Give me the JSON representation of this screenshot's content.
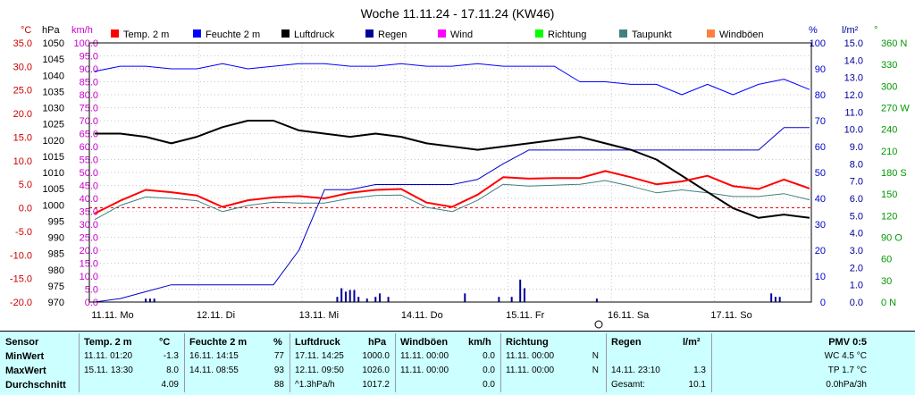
{
  "title": "Woche 11.11.24 - 17.11.24 (KW46)",
  "legend": [
    {
      "label": "Temp. 2 m",
      "color": "#ff0000"
    },
    {
      "label": "Feuchte  2 m",
      "color": "#0000ff"
    },
    {
      "label": "Luftdruck",
      "color": "#000000"
    },
    {
      "label": "Regen",
      "color": "#000099"
    },
    {
      "label": "Wind",
      "color": "#ff00ff"
    },
    {
      "label": "Richtung",
      "color": "#00ff00"
    },
    {
      "label": "Taupunkt",
      "color": "#408080"
    },
    {
      "label": "Windböen",
      "color": "#ff8040"
    }
  ],
  "axes": {
    "temp": {
      "unit": "°C",
      "color": "#cc0000",
      "ticks": [
        "35.0",
        "30.0",
        "25.0",
        "20.0",
        "15.0",
        "10.0",
        "5.0",
        "0.0",
        "-5.0",
        "-10.0",
        "-15.0",
        "-20.0"
      ]
    },
    "pressure": {
      "unit": "hPa",
      "color": "#000000",
      "ticks": [
        "1050",
        "1045",
        "1040",
        "1035",
        "1030",
        "1025",
        "1020",
        "1015",
        "1010",
        "1005",
        "1000",
        "995",
        "990",
        "985",
        "980",
        "975",
        "970"
      ]
    },
    "wind": {
      "unit": "km/h",
      "color": "#cc00cc",
      "ticks": [
        "100.0",
        "95.0",
        "90.0",
        "85.0",
        "80.0",
        "75.0",
        "70.0",
        "65.0",
        "60.0",
        "55.0",
        "50.0",
        "45.0",
        "40.0",
        "35.0",
        "30.0",
        "25.0",
        "20.0",
        "15.0",
        "10.0",
        "5.0",
        "0.0"
      ]
    },
    "humidity": {
      "unit": "%",
      "color": "#0000cc",
      "ticks": [
        "100",
        "90",
        "80",
        "70",
        "60",
        "50",
        "40",
        "30",
        "20",
        "10",
        "0"
      ]
    },
    "rain": {
      "unit": "l/m²",
      "color": "#000099",
      "ticks": [
        "15.0",
        "14.0",
        "13.0",
        "12.0",
        "11.0",
        "10.0",
        "9.0",
        "8.0",
        "7.0",
        "6.0",
        "5.0",
        "4.0",
        "3.0",
        "2.0",
        "1.0",
        "0.0"
      ]
    },
    "direction": {
      "unit": "°",
      "color": "#009900",
      "ticks": [
        "360 N",
        "330",
        "300",
        "270 W",
        "240",
        "210",
        "180 S",
        "150",
        "120",
        "90 O",
        "60",
        "30",
        "0 N"
      ]
    }
  },
  "x_labels": [
    "11.11. Mo",
    "12.11. Di",
    "13.11. Mi",
    "14.11. Do",
    "15.11. Fr",
    "16.11. Sa",
    "17.11. So"
  ],
  "chart_data": {
    "type": "line",
    "title": "Woche 11.11.24 - 17.11.24 (KW46)",
    "x": [
      0,
      6,
      12,
      18,
      24,
      30,
      36,
      42,
      48,
      54,
      60,
      66,
      72,
      78,
      84,
      90,
      96,
      102,
      108,
      114,
      120,
      126,
      132,
      138,
      144,
      150,
      156,
      162,
      168
    ],
    "xlabel_ticks": [
      "11.11. Mo",
      "12.11. Di",
      "13.11. Mi",
      "14.11. Do",
      "15.11. Fr",
      "16.11. Sa",
      "17.11. So"
    ],
    "series": [
      {
        "name": "Temp. 2 m",
        "axis": "temp",
        "values": [
          -1.2,
          1.5,
          3.8,
          3.3,
          2.6,
          0.2,
          1.6,
          2.2,
          2.5,
          2.0,
          3.2,
          3.8,
          4.0,
          1.1,
          0.2,
          2.8,
          6.5,
          6.2,
          6.3,
          6.3,
          7.8,
          6.5,
          5.0,
          5.6,
          6.8,
          4.6,
          4.0,
          6.0,
          4.1
        ]
      },
      {
        "name": "Feuchte  2 m",
        "axis": "humidity",
        "values": [
          89,
          91,
          91,
          90,
          90,
          92,
          90,
          91,
          92,
          92,
          91,
          91,
          92,
          91,
          91,
          92,
          91,
          91,
          91,
          85,
          85,
          84,
          84,
          80,
          84,
          80,
          84,
          86,
          82
        ]
      },
      {
        "name": "Luftdruck",
        "axis": "pressure",
        "values": [
          1022,
          1022,
          1021,
          1019,
          1021,
          1024,
          1026,
          1026,
          1023,
          1022,
          1021,
          1022,
          1021,
          1019,
          1018,
          1017,
          1018,
          1019,
          1020,
          1021,
          1019,
          1017,
          1014,
          1009,
          1004,
          999,
          996,
          997,
          996
        ]
      },
      {
        "name": "Regen",
        "axis": "rain",
        "values": [
          0.0,
          0.2,
          0.6,
          1.0,
          1.0,
          1.0,
          1.0,
          1.0,
          3.0,
          6.5,
          6.5,
          6.8,
          6.8,
          6.8,
          6.8,
          7.1,
          8.0,
          8.8,
          8.8,
          8.8,
          8.8,
          8.8,
          8.8,
          8.8,
          8.8,
          8.8,
          8.8,
          10.1,
          10.1
        ]
      },
      {
        "name": "Taupunkt",
        "axis": "temp",
        "values": [
          -2.5,
          0.5,
          2.3,
          2.0,
          1.5,
          -0.8,
          0.5,
          1.2,
          1.0,
          1.0,
          2.0,
          2.6,
          2.7,
          0.1,
          -0.8,
          1.6,
          5.0,
          4.6,
          4.8,
          5.0,
          5.8,
          4.6,
          3.2,
          3.8,
          3.2,
          2.4,
          2.4,
          3.0,
          1.7
        ]
      }
    ],
    "rain_bars_mm": [
      {
        "x": 12,
        "v": 0.2
      },
      {
        "x": 13,
        "v": 0.2
      },
      {
        "x": 14,
        "v": 0.2
      },
      {
        "x": 57,
        "v": 0.3
      },
      {
        "x": 58,
        "v": 0.8
      },
      {
        "x": 59,
        "v": 0.6
      },
      {
        "x": 60,
        "v": 0.7
      },
      {
        "x": 61,
        "v": 0.7
      },
      {
        "x": 62,
        "v": 0.3
      },
      {
        "x": 64,
        "v": 0.2
      },
      {
        "x": 66,
        "v": 0.3
      },
      {
        "x": 67,
        "v": 0.5
      },
      {
        "x": 69,
        "v": 0.3
      },
      {
        "x": 87,
        "v": 0.5
      },
      {
        "x": 95,
        "v": 0.3
      },
      {
        "x": 98,
        "v": 0.3
      },
      {
        "x": 100,
        "v": 1.3
      },
      {
        "x": 101,
        "v": 0.8
      },
      {
        "x": 118,
        "v": 0.2
      },
      {
        "x": 159,
        "v": 0.5
      },
      {
        "x": 160,
        "v": 0.3
      },
      {
        "x": 161,
        "v": 0.3
      }
    ],
    "ylim_temp": [
      -20,
      35
    ],
    "ylim_pressure": [
      970,
      1050
    ],
    "ylim_humidity": [
      0,
      100
    ],
    "ylim_rain": [
      0,
      15
    ],
    "grid": true,
    "legend_position": "top"
  },
  "stats": {
    "sensor": {
      "header": "Sensor",
      "rows": [
        "MinWert",
        "MaxWert",
        "Durchschnitt"
      ]
    },
    "temp": {
      "header": "Temp. 2 m",
      "unit": "°C",
      "rows": [
        {
          "time": "11.11.  01:20",
          "value": "-1.3"
        },
        {
          "time": "15.11.  13:30",
          "value": "8.0"
        },
        {
          "time": "",
          "value": "4.09"
        }
      ]
    },
    "humidity": {
      "header": "Feuchte  2 m",
      "unit": "%",
      "rows": [
        {
          "time": "16.11.  14:15",
          "value": "77"
        },
        {
          "time": "14.11.  08:55",
          "value": "93"
        },
        {
          "time": "",
          "value": "88"
        }
      ]
    },
    "pressure": {
      "header": "Luftdruck",
      "unit": "hPa",
      "rows": [
        {
          "time": "17.11.  14:25",
          "value": "1000.0"
        },
        {
          "time": "12.11.  09:50",
          "value": "1026.0"
        },
        {
          "time": "^1.3hPa/h",
          "value": "1017.2"
        }
      ]
    },
    "gusts": {
      "header": "Windböen",
      "unit": "km/h",
      "rows": [
        {
          "time": "11.11.  00:00",
          "value": "0.0"
        },
        {
          "time": "11.11.  00:00",
          "value": "0.0"
        },
        {
          "time": "",
          "value": "0.0"
        }
      ]
    },
    "direction": {
      "header": "Richtung",
      "unit": "",
      "rows": [
        {
          "time": "11.11.  00:00",
          "value": "N"
        },
        {
          "time": "11.11.  00:00",
          "value": "N"
        },
        {
          "time": "",
          "value": ""
        }
      ]
    },
    "rain": {
      "header": "Regen",
      "unit": "l/m²",
      "rows": [
        {
          "time": "",
          "value": ""
        },
        {
          "time": "14.11.  23:10",
          "value": "1.3"
        },
        {
          "time": "Gesamt:",
          "value": "10.1"
        }
      ]
    },
    "pmv": {
      "header": "PMV 0:5",
      "rows": [
        "WC 4.5 °C",
        "TP 1.7 °C",
        "0.0hPa/3h"
      ]
    }
  }
}
